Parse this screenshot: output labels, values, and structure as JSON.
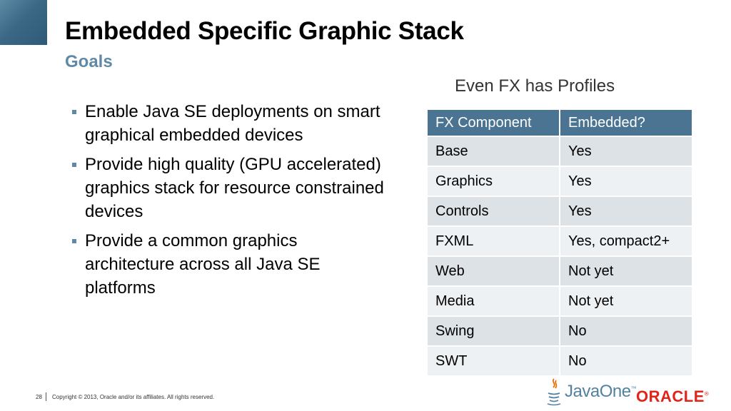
{
  "slide": {
    "title": "Embedded Specific Graphic Stack",
    "subtitle": "Goals"
  },
  "bullets": [
    "Enable Java SE deployments on smart graphical embedded devices",
    "Provide high quality (GPU accelerated) graphics stack for resource constrained devices",
    "Provide a common graphics architecture across all Java SE platforms"
  ],
  "table": {
    "caption": "Even FX has Profiles",
    "headers": [
      "FX Component",
      "Embedded?"
    ],
    "rows": [
      [
        "Base",
        "Yes"
      ],
      [
        "Graphics",
        "Yes"
      ],
      [
        "Controls",
        "Yes"
      ],
      [
        "FXML",
        "Yes, compact2+"
      ],
      [
        "Web",
        "Not yet"
      ],
      [
        "Media",
        "Not yet"
      ],
      [
        "Swing",
        "No"
      ],
      [
        "SWT",
        "No"
      ]
    ]
  },
  "footer": {
    "page_number": "28",
    "copyright": "Copyright © 2013, Oracle and/or its affiliates. All rights reserved."
  },
  "logos": {
    "javaone": "JavaOne",
    "javaone_mark": "™",
    "oracle": "ORACLE",
    "oracle_mark": "®"
  },
  "colors": {
    "accent_blue": "#5f89a6",
    "table_header": "#4b7493",
    "row_dark": "#dde2e7",
    "row_light": "#eef1f3",
    "oracle_red": "#e2231a"
  }
}
